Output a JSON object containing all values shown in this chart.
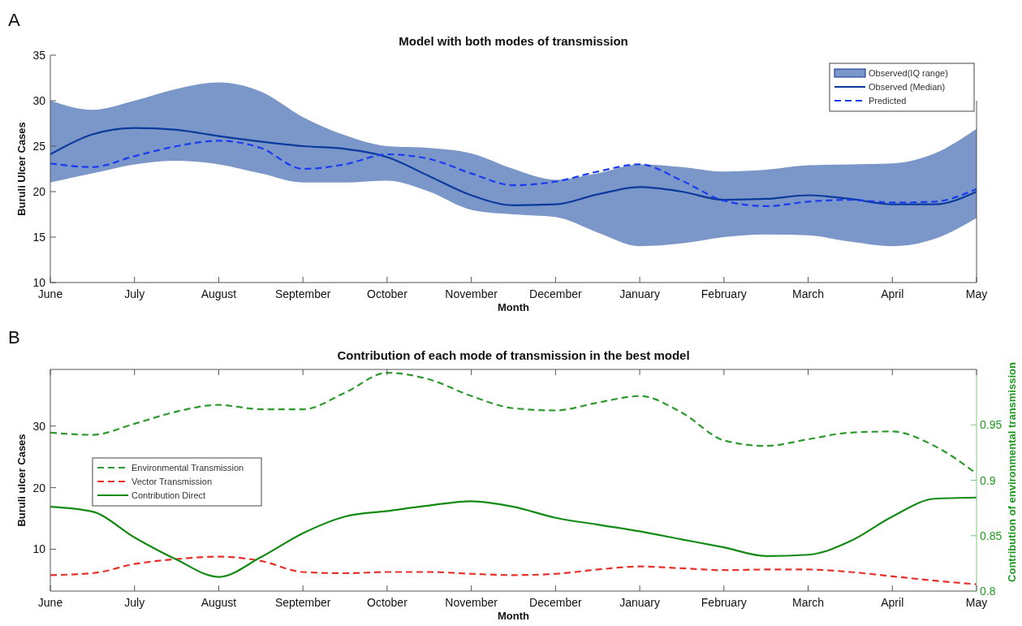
{
  "chart_data": [
    {
      "type": "line",
      "title": "Model with both modes of transmission",
      "xlabel": "Month",
      "ylabel": "Buruli Ulcer Cases",
      "annotations": [
        "A"
      ],
      "legend": "top right",
      "ylim": [
        10,
        35
      ],
      "yticks": [
        10,
        15,
        20,
        25,
        30,
        35
      ],
      "categories": [
        "June",
        null,
        "July",
        null,
        "August",
        null,
        "September",
        null,
        "October",
        null,
        "November",
        null,
        "December",
        null,
        "January",
        null,
        "February",
        null,
        "March",
        null,
        "April",
        null,
        "May"
      ],
      "series": [
        {
          "type": "area",
          "name": "Observed(IQ range)",
          "color": "#7b96c8",
          "values": [
            null,
            null,
            null,
            null,
            null,
            null,
            null,
            null,
            null,
            null,
            null,
            null,
            null,
            null,
            null,
            null,
            null,
            null,
            null,
            null,
            null,
            null,
            null
          ],
          "lower": [
            21,
            22,
            23,
            23.4,
            23,
            22,
            21,
            21,
            21.2,
            20,
            18,
            17.5,
            17.2,
            15.5,
            14,
            14.3,
            15,
            15.3,
            15.2,
            14.5,
            14,
            14.8,
            17.1
          ],
          "upper": [
            30,
            29,
            30,
            31.3,
            32,
            31,
            28.2,
            26.2,
            25,
            24.8,
            24.2,
            22.5,
            21.3,
            22,
            23,
            22.7,
            22.2,
            22.4,
            22.9,
            23,
            23.1,
            24.2,
            26.9
          ]
        },
        {
          "type": "line",
          "name": "Observed (Median)",
          "color": "#0a3a9c",
          "line_style": "solid",
          "values": [
            24.1,
            26.3,
            27,
            26.8,
            26.1,
            25.5,
            25,
            24.7,
            23.8,
            21.7,
            19.6,
            18.5,
            18.6,
            19.7,
            20.5,
            20,
            19.1,
            19.2,
            19.6,
            19.2,
            18.6,
            18.6,
            20
          ]
        },
        {
          "type": "line",
          "name": "Predicted",
          "color": "#1a3cf0",
          "line_style": "dashed",
          "values": [
            23.1,
            22.7,
            23.9,
            25,
            25.6,
            24.8,
            22.5,
            23,
            24.1,
            23.6,
            22,
            20.7,
            21.1,
            22.2,
            23,
            21.2,
            19,
            18.4,
            18.9,
            19.1,
            18.8,
            18.9,
            20.3
          ]
        }
      ]
    },
    {
      "type": "line",
      "title": "Contribution of each mode of transmission in the best model",
      "xlabel": "Month",
      "ylabel": "Buruli ulcer Cases",
      "y2label": "Contribution of environmental transmission",
      "annotations": [
        "B"
      ],
      "legend": "left",
      "ylim": [
        3.2,
        39.2
      ],
      "yticks": [
        10,
        20,
        30
      ],
      "y2lim": [
        0.8,
        1.0
      ],
      "y2ticks": [
        0.8,
        0.85,
        0.9,
        0.95
      ],
      "categories": [
        "June",
        null,
        "July",
        null,
        "August",
        null,
        "September",
        null,
        "October",
        null,
        "November",
        null,
        "December",
        null,
        "January",
        null,
        "February",
        null,
        "March",
        null,
        "April",
        null,
        "May"
      ],
      "series": [
        {
          "type": "line",
          "name": "Environmental Transmission",
          "color": "#2e9a2e",
          "line_style": "dashed",
          "axis": "y2",
          "values": [
            0.943,
            0.941,
            0.951,
            0.962,
            0.968,
            0.964,
            0.964,
            0.979,
            0.997,
            0.991,
            0.976,
            0.965,
            0.963,
            0.97,
            0.976,
            0.961,
            0.936,
            0.931,
            0.937,
            0.943,
            0.944,
            0.931,
            0.906
          ]
        },
        {
          "type": "line",
          "name": "Vector Transmission",
          "color": "#e8302a",
          "line_style": "dashed",
          "values": [
            5.8,
            6.1,
            7.6,
            8.4,
            8.8,
            8.1,
            6.3,
            6.1,
            6.3,
            6.3,
            6,
            5.8,
            6,
            6.7,
            7.2,
            6.9,
            6.6,
            6.7,
            6.7,
            6.3,
            5.6,
            4.9,
            4.3
          ]
        },
        {
          "type": "line",
          "name": "Contribution Direct",
          "color": "#138a13",
          "line_style": "solid",
          "values": [
            16.9,
            16.1,
            11.9,
            8.3,
            5.5,
            8.7,
            12.6,
            15.3,
            16.2,
            17.1,
            17.8,
            16.9,
            15.1,
            14,
            12.9,
            11.6,
            10.3,
            8.9,
            9.1,
            11.3,
            15.3,
            18.2,
            18.4
          ]
        }
      ]
    }
  ]
}
